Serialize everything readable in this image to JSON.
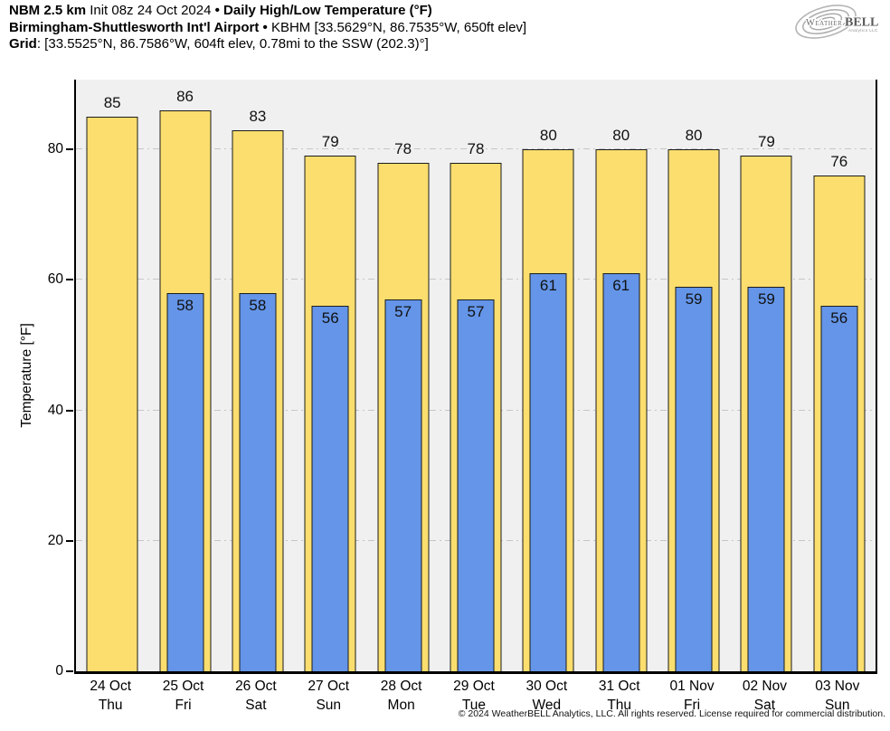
{
  "header": {
    "line1": {
      "model": "NBM 2.5 km",
      "init": " Init 08z 24 Oct 2024 ",
      "sep": "• ",
      "product": "Daily High/Low Temperature (°F)"
    },
    "line2": {
      "station": "Birmingham-Shuttlesworth Int'l Airport",
      "sep": " • ",
      "details": "KBHM [33.5629°N, 86.7535°W, 650ft elev]"
    },
    "line3": {
      "label": "Grid",
      "details": ": [33.5525°N, 86.7586°W, 604ft elev, 0.78mi to the SSW (202.3)°]"
    }
  },
  "logo": {
    "weather": "Weather",
    "bell": "BELL",
    "subtext": "Analytics LLC"
  },
  "chart_data": {
    "type": "bar",
    "title": "NBM 2.5 km Init 08z 24 Oct 2024 • Daily High/Low Temperature (°F)",
    "subtitle": "Birmingham-Shuttlesworth Int'l Airport • KBHM [33.5629°N, 86.7535°W, 650ft elev]",
    "xlabel": "",
    "ylabel": "Temperature [°F]",
    "ylim": [
      0,
      90.7
    ],
    "yticks": [
      0,
      20,
      40,
      60,
      80
    ],
    "gridlines": [
      20,
      40,
      60,
      80
    ],
    "grid_style": "dash-dot",
    "legend": "none",
    "plot_bg": "#f0f0f0",
    "grid_color": "#c6c6c6",
    "bar_border": "#1b1b1b",
    "categories": [
      {
        "date": "24 Oct",
        "day": "Thu"
      },
      {
        "date": "25 Oct",
        "day": "Fri"
      },
      {
        "date": "26 Oct",
        "day": "Sat"
      },
      {
        "date": "27 Oct",
        "day": "Sun"
      },
      {
        "date": "28 Oct",
        "day": "Mon"
      },
      {
        "date": "29 Oct",
        "day": "Tue"
      },
      {
        "date": "30 Oct",
        "day": "Wed"
      },
      {
        "date": "31 Oct",
        "day": "Thu"
      },
      {
        "date": "01 Nov",
        "day": "Fri"
      },
      {
        "date": "02 Nov",
        "day": "Sat"
      },
      {
        "date": "03 Nov",
        "day": "Sun"
      }
    ],
    "series": [
      {
        "name": "Daily High",
        "color": "#FBDE6E",
        "values": [
          85,
          86,
          83,
          79,
          78,
          78,
          80,
          80,
          80,
          79,
          76
        ]
      },
      {
        "name": "Daily Low",
        "color": "#6495E8",
        "values": [
          null,
          58,
          58,
          56,
          57,
          57,
          61,
          61,
          59,
          59,
          56
        ]
      }
    ]
  },
  "footer": {
    "copyright": "© 2024 WeatherBELL Analytics, LLC. All rights reserved. License required for commercial distribution."
  }
}
